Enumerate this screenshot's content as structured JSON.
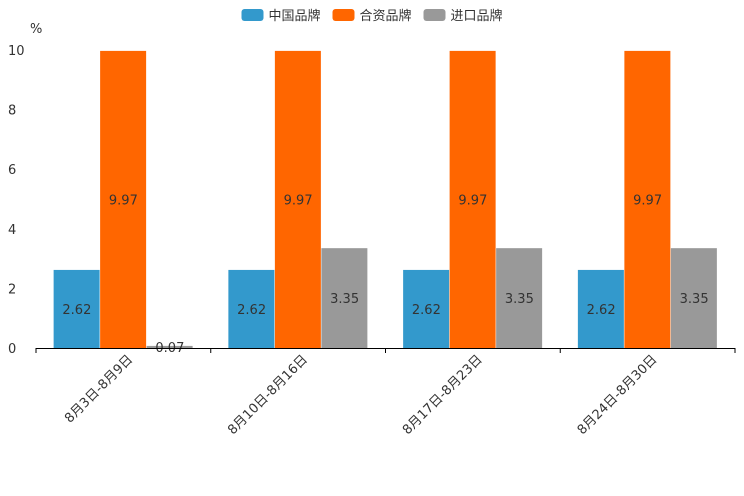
{
  "chart_data": {
    "type": "bar",
    "title": "",
    "xlabel": "",
    "ylabel": "%",
    "ylim": [
      0,
      10
    ],
    "yticks": [
      0,
      2,
      4,
      6,
      8,
      10
    ],
    "categories": [
      "8月3日-8月9日",
      "8月10日-8月16日",
      "8月17日-8月23日",
      "8月24日-8月30日"
    ],
    "series": [
      {
        "name": "中国品牌",
        "color": "#3399cc",
        "values": [
          2.62,
          2.62,
          2.62,
          2.62
        ],
        "labels": [
          "2.62",
          "2.62",
          "2.62",
          "2.62"
        ]
      },
      {
        "name": "合资品牌",
        "color": "#ff6600",
        "values": [
          9.97,
          9.97,
          9.97,
          9.97
        ],
        "labels": [
          "9.97",
          "9.97",
          "9.97",
          "9.97"
        ]
      },
      {
        "name": "进口品牌",
        "color": "#999999",
        "values": [
          0.07,
          3.35,
          3.35,
          3.35
        ],
        "labels": [
          "0.07",
          "3.35",
          "3.35",
          "3.35"
        ]
      }
    ],
    "legend_position": "top-center",
    "grid": false
  }
}
